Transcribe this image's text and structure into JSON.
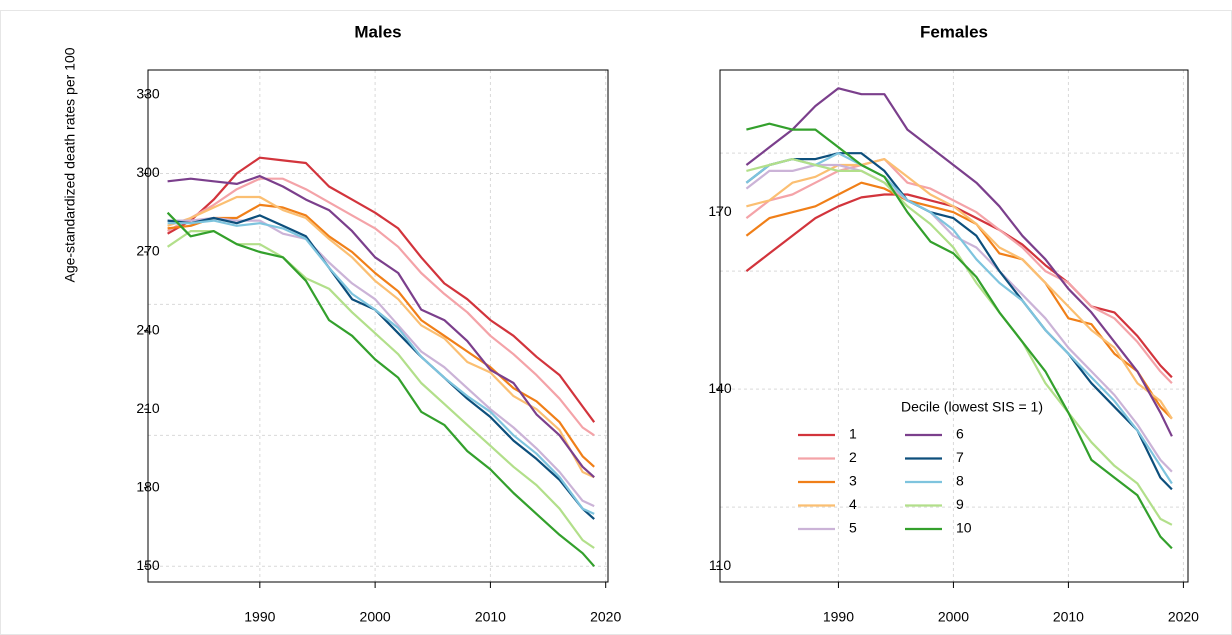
{
  "chart_data": [
    {
      "type": "line",
      "title": "Males",
      "y_label": "Age-standardized death rates per 100",
      "x": [
        1982,
        1984,
        1986,
        1988,
        1990,
        1992,
        1994,
        1996,
        1998,
        2000,
        2002,
        2004,
        2006,
        2008,
        2010,
        2012,
        2014,
        2016,
        2018,
        2019
      ],
      "xlim": [
        1980.3,
        2020.2
      ],
      "xticks": [
        1990,
        2000,
        2010,
        2020
      ],
      "ylim": [
        144,
        339.5
      ],
      "yticks": [
        150,
        180,
        210,
        240,
        270,
        300,
        330
      ],
      "ygrid": [
        150,
        200,
        250,
        300
      ],
      "grid": true,
      "series": [
        {
          "name": "1",
          "color": "#d2343c",
          "values": [
            277,
            282,
            290,
            300,
            306,
            305,
            304,
            295,
            290,
            285,
            279,
            268,
            258,
            252,
            244,
            238,
            230,
            223,
            211,
            205
          ]
        },
        {
          "name": "2",
          "color": "#f4a3a8",
          "values": [
            278,
            283,
            288,
            294,
            298,
            298,
            294,
            289,
            284,
            279,
            272,
            262,
            254,
            247,
            238,
            231,
            223,
            214,
            203,
            200
          ]
        },
        {
          "name": "3",
          "color": "#f07f18",
          "values": [
            279,
            280,
            283,
            283,
            288,
            287,
            284,
            276,
            270,
            262,
            255,
            244,
            238,
            232,
            226,
            218,
            213,
            205,
            192,
            188
          ]
        },
        {
          "name": "4",
          "color": "#fbbf72",
          "values": [
            280,
            283,
            287,
            291,
            291,
            286,
            283,
            275,
            268,
            259,
            252,
            242,
            237,
            228,
            224,
            215,
            210,
            202,
            186,
            184
          ]
        },
        {
          "name": "5",
          "color": "#cbb3d7",
          "values": [
            282,
            282,
            283,
            282,
            282,
            277,
            275,
            266,
            258,
            252,
            242,
            232,
            226,
            218,
            210,
            203,
            195,
            186,
            175,
            173
          ]
        },
        {
          "name": "6",
          "color": "#7b3f8c",
          "values": [
            297,
            298,
            297,
            296,
            299,
            295,
            290,
            286,
            278,
            268,
            262,
            248,
            244,
            236,
            225,
            220,
            208,
            200,
            188,
            184
          ]
        },
        {
          "name": "7",
          "color": "#0d4f7c",
          "values": [
            282,
            281,
            283,
            281,
            284,
            280,
            276,
            264,
            252,
            248,
            239,
            230,
            222,
            214,
            207,
            198,
            191,
            183,
            172,
            168
          ]
        },
        {
          "name": "8",
          "color": "#7ec4de",
          "values": [
            281,
            281,
            282,
            280,
            281,
            279,
            275,
            264,
            254,
            248,
            241,
            230,
            222,
            215,
            209,
            200,
            193,
            184,
            172,
            170
          ]
        },
        {
          "name": "9",
          "color": "#b2df8a",
          "values": [
            272,
            278,
            278,
            273,
            273,
            268,
            260,
            256,
            247,
            239,
            231,
            220,
            212,
            204,
            196,
            188,
            181,
            172,
            160,
            157
          ]
        },
        {
          "name": "10",
          "color": "#33a02c",
          "values": [
            285,
            276,
            278,
            273,
            270,
            268,
            259,
            244,
            238,
            229,
            222,
            209,
            204,
            194,
            187,
            178,
            170,
            162,
            155,
            150
          ]
        }
      ]
    },
    {
      "type": "line",
      "title": "Females",
      "legend_title": "Decile (lowest SIS = 1)",
      "x": [
        1982,
        1984,
        1986,
        1988,
        1990,
        1992,
        1994,
        1996,
        1998,
        2000,
        2002,
        2004,
        2006,
        2008,
        2010,
        2012,
        2014,
        2016,
        2018,
        2019
      ],
      "xlim": [
        1979.7,
        2020.4
      ],
      "xticks": [
        1990,
        2000,
        2010,
        2020
      ],
      "ylim": [
        107.3,
        194.1
      ],
      "yticks": [
        110,
        140,
        170
      ],
      "ygrid": [
        120,
        140,
        160,
        180
      ],
      "grid": true,
      "series": [
        {
          "name": "1",
          "color": "#d2343c",
          "values": [
            160,
            163,
            166,
            169,
            171,
            172.5,
            173,
            173,
            172,
            171,
            169,
            167,
            164.5,
            161,
            158,
            154,
            153,
            149,
            144,
            142
          ]
        },
        {
          "name": "2",
          "color": "#f4a3a8",
          "values": [
            169,
            172,
            173,
            175,
            177,
            178,
            179,
            175,
            174,
            172,
            170,
            167,
            164,
            160,
            158,
            154,
            152,
            148,
            143,
            141
          ]
        },
        {
          "name": "3",
          "color": "#f07f18",
          "values": [
            166,
            169,
            170,
            171,
            173,
            175,
            174,
            172,
            171,
            170,
            168,
            163,
            162,
            158,
            152,
            151,
            146,
            143,
            137,
            135
          ]
        },
        {
          "name": "4",
          "color": "#fbbf72",
          "values": [
            171,
            172,
            175,
            176,
            178,
            178,
            179,
            176,
            173,
            171,
            168,
            164,
            162,
            158,
            154,
            150,
            147,
            141,
            138,
            135
          ]
        },
        {
          "name": "5",
          "color": "#cbb3d7",
          "values": [
            174,
            177,
            177,
            178,
            178,
            177,
            175,
            172,
            170,
            166,
            164,
            160,
            156,
            152,
            147,
            143,
            139,
            134,
            128,
            126
          ]
        },
        {
          "name": "6",
          "color": "#7b3f8c",
          "values": [
            178,
            181,
            184,
            188,
            191,
            190,
            190,
            184,
            181,
            178,
            175,
            171,
            166,
            162,
            157,
            153,
            148,
            143,
            136,
            132
          ]
        },
        {
          "name": "7",
          "color": "#0d4f7c",
          "values": [
            175,
            178,
            179,
            179,
            180,
            180,
            177,
            172,
            170,
            169,
            166,
            160,
            155,
            150,
            146,
            141,
            137,
            133,
            125,
            123
          ]
        },
        {
          "name": "8",
          "color": "#7ec4de",
          "values": [
            175,
            178,
            179,
            178,
            180,
            178,
            176,
            172,
            170,
            167,
            162,
            158,
            155,
            150,
            146,
            142,
            138,
            133,
            127,
            124
          ]
        },
        {
          "name": "9",
          "color": "#b2df8a",
          "values": [
            177,
            178,
            179,
            178,
            177,
            177,
            175,
            171,
            168,
            164,
            158,
            153,
            148,
            141,
            136,
            131,
            127,
            124,
            118,
            117
          ]
        },
        {
          "name": "10",
          "color": "#33a02c",
          "values": [
            184,
            185,
            184,
            184,
            181,
            178,
            176,
            170,
            165,
            163,
            159,
            153,
            148,
            143,
            136,
            128,
            125,
            122,
            115,
            113
          ]
        }
      ]
    }
  ]
}
